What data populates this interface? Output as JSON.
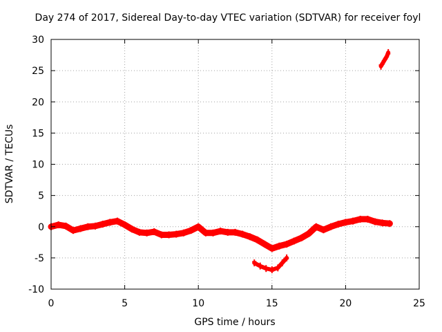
{
  "chart_data": {
    "type": "scatter",
    "title": "Day 274 of 2017, Sidereal Day-to-day VTEC variation (SDTVAR) for receiver foyl",
    "xlabel": "GPS time / hours",
    "ylabel": "SDTVAR / TECUs",
    "xlim": [
      0,
      25
    ],
    "ylim": [
      -10,
      30
    ],
    "xticks": [
      0,
      5,
      10,
      15,
      20,
      25
    ],
    "yticks": [
      -10,
      -5,
      0,
      5,
      10,
      15,
      20,
      25,
      30
    ],
    "xtick_labels": [
      "0",
      "5",
      "10",
      "15",
      "20",
      "25"
    ],
    "ytick_labels": [
      "-10",
      "-5",
      "0",
      "5",
      "10",
      "15",
      "20",
      "25",
      "30"
    ],
    "grid": true,
    "color": "#ff0000",
    "series": [
      {
        "name": "main-band",
        "x": [
          0.0,
          0.5,
          1.0,
          1.5,
          2.0,
          2.5,
          3.0,
          3.5,
          4.0,
          4.5,
          5.0,
          5.5,
          6.0,
          6.5,
          7.0,
          7.5,
          8.0,
          8.5,
          9.0,
          9.5,
          10.0,
          10.5,
          11.0,
          11.5,
          12.0,
          12.5,
          13.0,
          13.5,
          14.0,
          14.5,
          15.0,
          15.5,
          16.0,
          16.5,
          17.0,
          17.5,
          18.0,
          18.5,
          19.0,
          19.5,
          20.0,
          20.5,
          21.0,
          21.5,
          22.0,
          22.5,
          23.0
        ],
        "values": [
          0.0,
          0.3,
          0.1,
          -0.6,
          -0.3,
          0.0,
          0.1,
          0.4,
          0.7,
          0.9,
          0.3,
          -0.4,
          -0.9,
          -1.0,
          -0.8,
          -1.3,
          -1.3,
          -1.2,
          -1.0,
          -0.6,
          0.0,
          -1.0,
          -1.0,
          -0.7,
          -0.9,
          -0.9,
          -1.2,
          -1.6,
          -2.1,
          -2.8,
          -3.5,
          -3.1,
          -2.8,
          -2.3,
          -1.8,
          -1.1,
          0.0,
          -0.5,
          0.0,
          0.4,
          0.7,
          0.9,
          1.2,
          1.2,
          0.8,
          0.6,
          0.5
        ]
      },
      {
        "name": "secondary-band",
        "x": [
          13.8,
          14.2,
          14.6,
          15.0,
          15.4,
          15.7,
          16.0
        ],
        "values": [
          -5.8,
          -6.3,
          -6.7,
          -6.9,
          -6.6,
          -5.8,
          -5.0
        ]
      },
      {
        "name": "upper-arc",
        "x": [
          22.4,
          22.6,
          22.8,
          22.9
        ],
        "values": [
          25.7,
          26.5,
          27.3,
          27.9
        ]
      }
    ]
  }
}
